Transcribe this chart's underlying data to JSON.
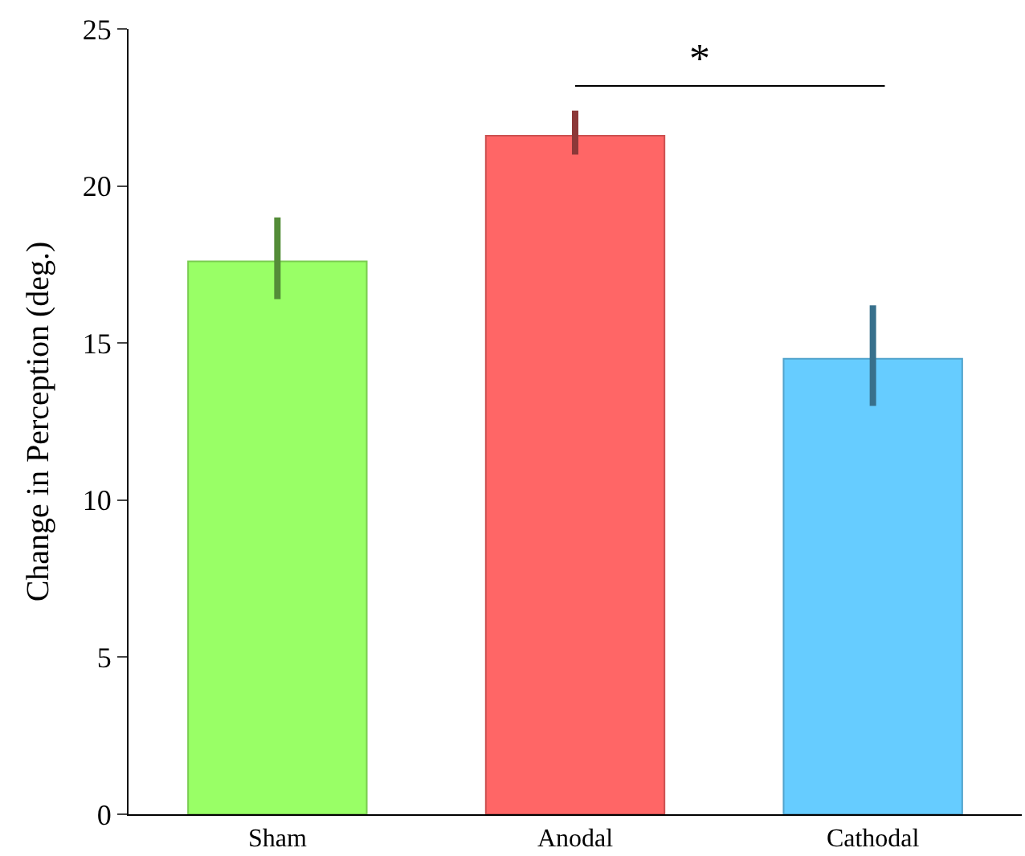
{
  "chart_data": {
    "type": "bar",
    "ylabel": "Change in Perception (deg.)",
    "categories": [
      "Sham",
      "Anodal",
      "Cathodal"
    ],
    "values": [
      17.6,
      21.6,
      14.5
    ],
    "colors": [
      "#99ff66",
      "#ff6666",
      "#66ccff"
    ],
    "errors": [
      [
        16.4,
        19.0
      ],
      [
        21.0,
        22.4
      ],
      [
        13.0,
        16.2
      ]
    ],
    "ylim": [
      0,
      25
    ],
    "yticks": [
      0,
      5,
      10,
      15,
      20,
      25
    ],
    "annotations": [
      "*"
    ]
  }
}
